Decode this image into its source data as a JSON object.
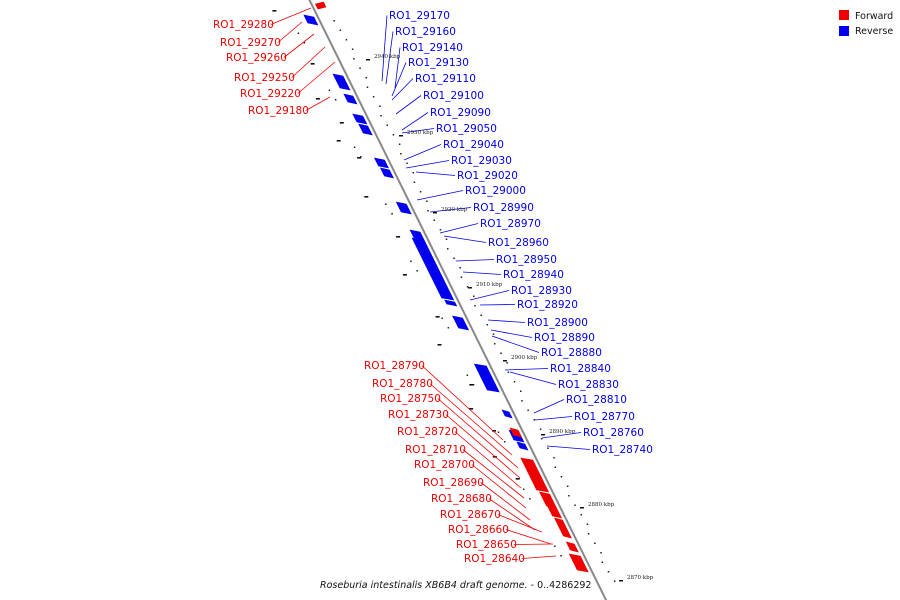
{
  "caption_italic": "Roseburia intestinalis XB6B4 draft genome.",
  "caption_rest": " - 0..4286292",
  "legend": [
    {
      "label": "Forward",
      "color": "#ee0000"
    },
    {
      "label": "Reverse",
      "color": "#0000ee"
    }
  ],
  "colors": {
    "forward": "#ee0000",
    "reverse": "#0000ee",
    "axis": "#888888"
  },
  "ticks": [
    "2940 kbp",
    "2930 kbp",
    "2920 kbp",
    "2910 kbp",
    "2900 kbp",
    "2890 kbp",
    "2880 kbp",
    "2870 kbp"
  ],
  "forward_labels": [
    "RO1_29280",
    "RO1_29270",
    "RO1_29260",
    "RO1_29250",
    "RO1_29220",
    "RO1_29180",
    "RO1_28790",
    "RO1_28780",
    "RO1_28750",
    "RO1_28730",
    "RO1_28720",
    "RO1_28710",
    "RO1_28700",
    "RO1_28690",
    "RO1_28680",
    "RO1_28670",
    "RO1_28660",
    "RO1_28650",
    "RO1_28640"
  ],
  "reverse_labels": [
    "RO1_29170",
    "RO1_29160",
    "RO1_29140",
    "RO1_29130",
    "RO1_29110",
    "RO1_29100",
    "RO1_29090",
    "RO1_29050",
    "RO1_29040",
    "RO1_29030",
    "RO1_29020",
    "RO1_29000",
    "RO1_28990",
    "RO1_28970",
    "RO1_28960",
    "RO1_28950",
    "RO1_28940",
    "RO1_28930",
    "RO1_28920",
    "RO1_28900",
    "RO1_28890",
    "RO1_28880",
    "RO1_28840",
    "RO1_28830",
    "RO1_28810",
    "RO1_28770",
    "RO1_28760",
    "RO1_28740"
  ]
}
